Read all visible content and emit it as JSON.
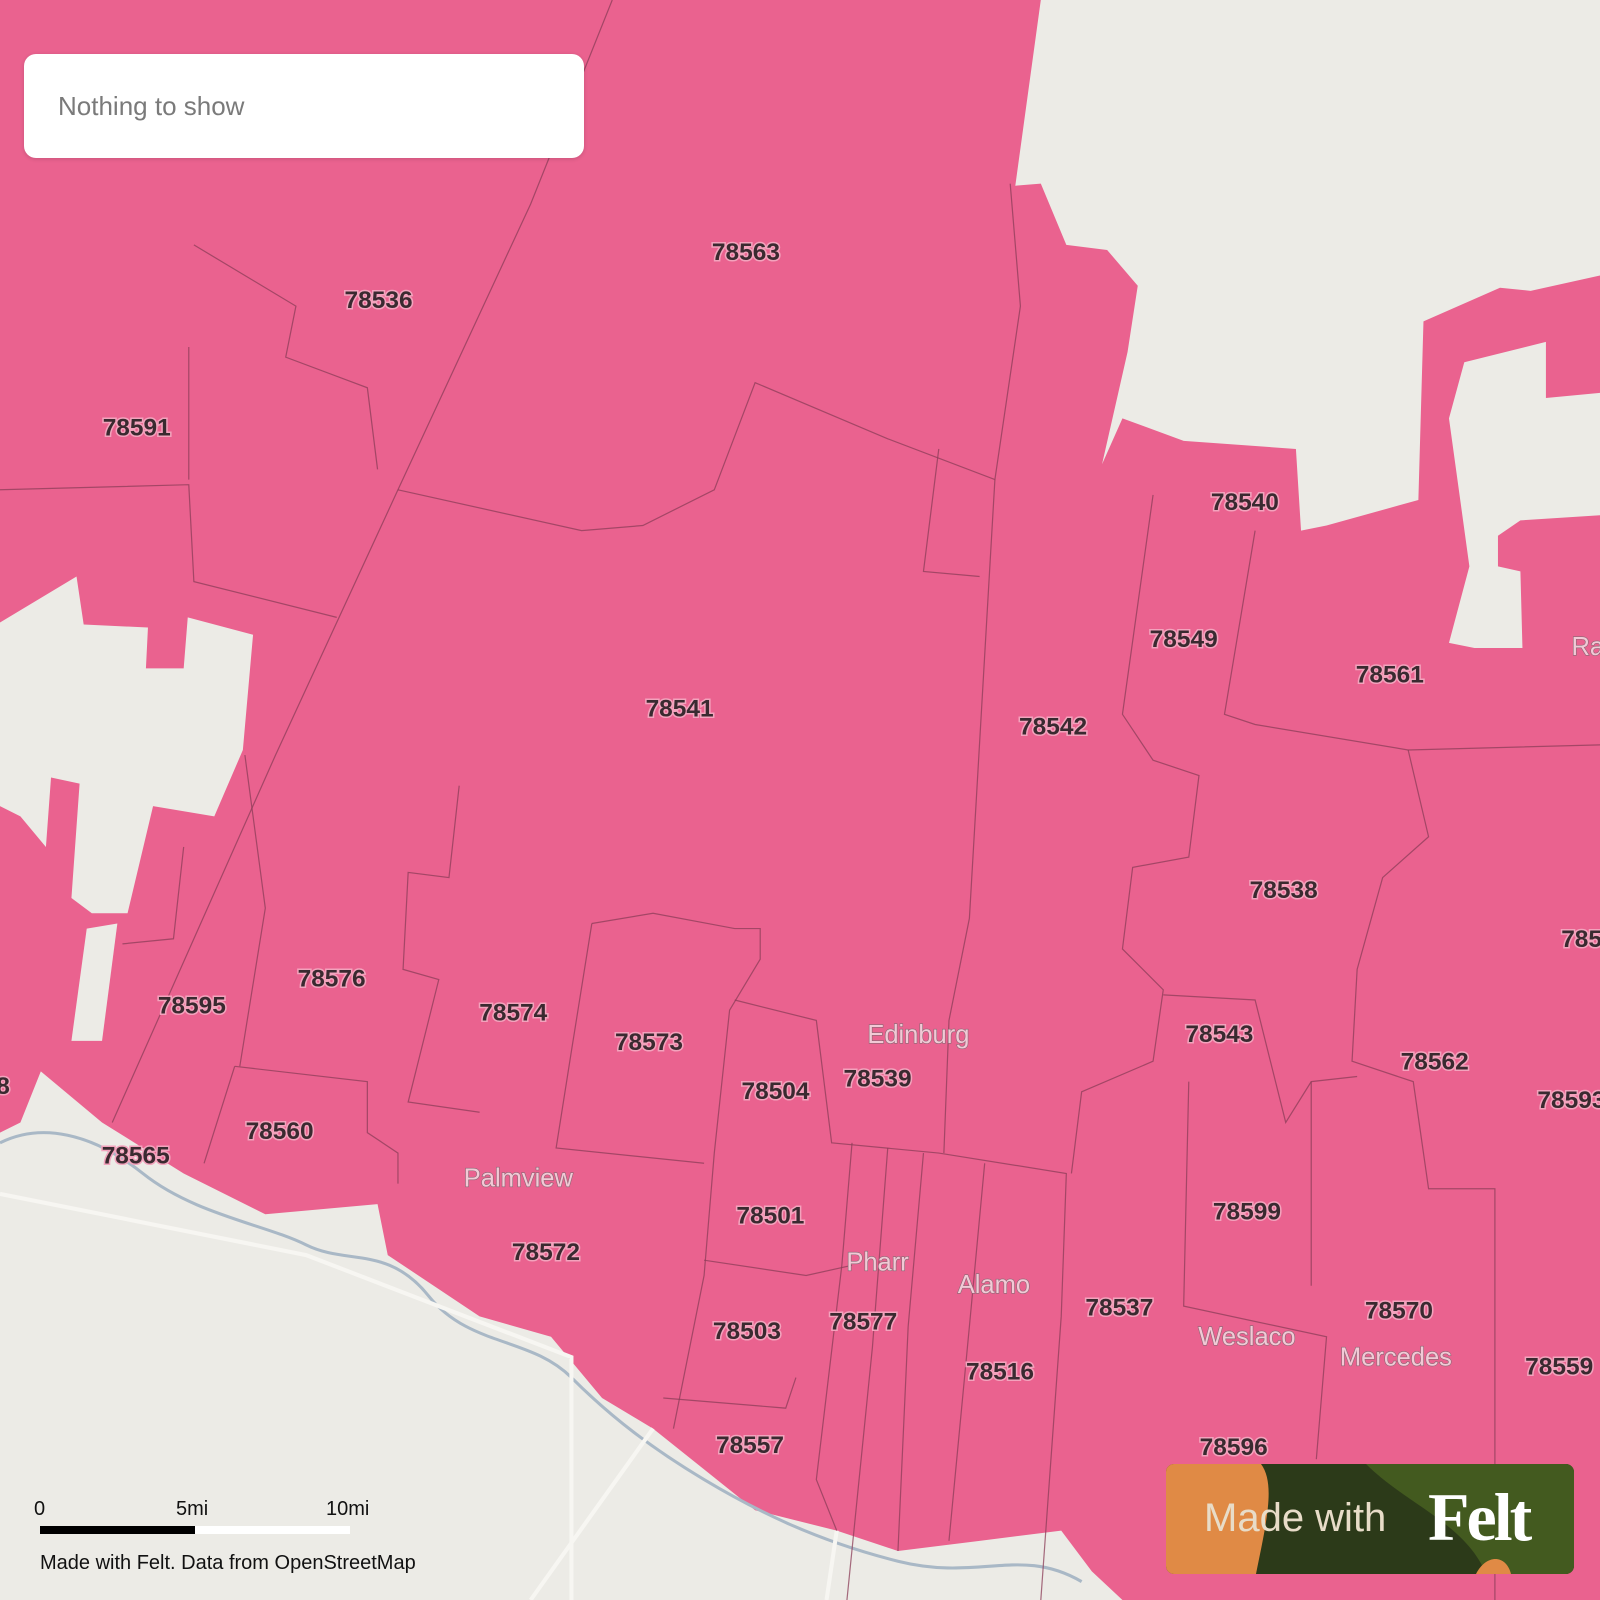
{
  "search": {
    "placeholder": "Nothing to show"
  },
  "colors": {
    "zip_fill": "#ea628f",
    "land": "#ecebe6",
    "felt_badge": "#2c3a19",
    "felt_orange": "#e08a45"
  },
  "zip_labels": [
    "78563",
    "78536",
    "78591",
    "78541",
    "78542",
    "78540",
    "78549",
    "78561",
    "78538",
    "78595",
    "78576",
    "78574",
    "78573",
    "78504",
    "78539",
    "78543",
    "78562",
    "78593",
    "78560",
    "78565",
    "78501",
    "78572",
    "78599",
    "78577",
    "78503",
    "78516",
    "78537",
    "78570",
    "78559",
    "78557",
    "78596",
    "785",
    "8"
  ],
  "town_labels": [
    "Edinburg",
    "Palmview",
    "Pharr",
    "Alamo",
    "Weslaco",
    "Mercedes",
    "Ra"
  ],
  "scale": {
    "zero": "0",
    "mid": "5mi",
    "end": "10mi"
  },
  "attribution": "Made with Felt. Data from OpenStreetMap",
  "badge": {
    "text": "Made with",
    "logo": "Felt"
  }
}
